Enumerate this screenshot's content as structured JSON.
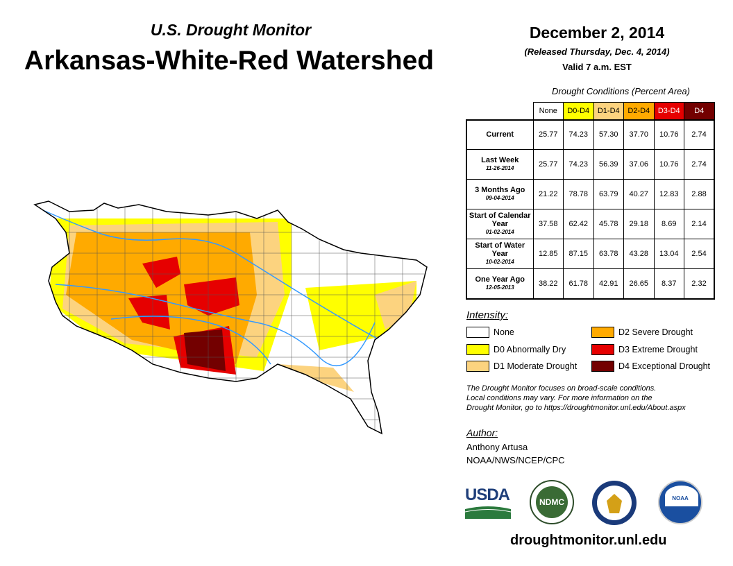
{
  "header": {
    "subtitle": "U.S. Drought Monitor",
    "title": "Arkansas-White-Red Watershed",
    "date": "December 2, 2014",
    "released": "(Released Thursday, Dec. 4, 2014)",
    "valid": "Valid 7 a.m. EST"
  },
  "table": {
    "caption": "Drought Conditions (Percent Area)",
    "columns": [
      {
        "label": "None",
        "bg": "#ffffff",
        "fg": "#000000"
      },
      {
        "label": "D0-D4",
        "bg": "#ffff00",
        "fg": "#000000"
      },
      {
        "label": "D1-D4",
        "bg": "#fcd37f",
        "fg": "#000000"
      },
      {
        "label": "D2-D4",
        "bg": "#ffaa00",
        "fg": "#000000"
      },
      {
        "label": "D3-D4",
        "bg": "#e60000",
        "fg": "#ffffff"
      },
      {
        "label": "D4",
        "bg": "#730000",
        "fg": "#ffffff"
      }
    ],
    "rows": [
      {
        "label": "Current",
        "date": "",
        "values": [
          "25.77",
          "74.23",
          "57.30",
          "37.70",
          "10.76",
          "2.74"
        ]
      },
      {
        "label": "Last Week",
        "date": "11-26-2014",
        "values": [
          "25.77",
          "74.23",
          "56.39",
          "37.06",
          "10.76",
          "2.74"
        ]
      },
      {
        "label": "3 Months Ago",
        "date": "09-04-2014",
        "values": [
          "21.22",
          "78.78",
          "63.79",
          "40.27",
          "12.83",
          "2.88"
        ]
      },
      {
        "label": "Start of Calendar Year",
        "date": "01-02-2014",
        "values": [
          "37.58",
          "62.42",
          "45.78",
          "29.18",
          "8.69",
          "2.14"
        ]
      },
      {
        "label": "Start of Water Year",
        "date": "10-02-2014",
        "values": [
          "12.85",
          "87.15",
          "63.78",
          "43.28",
          "13.04",
          "2.54"
        ]
      },
      {
        "label": "One Year Ago",
        "date": "12-05-2013",
        "values": [
          "38.22",
          "61.78",
          "42.91",
          "26.65",
          "8.37",
          "2.32"
        ]
      }
    ]
  },
  "legend": {
    "title": "Intensity:",
    "items": [
      {
        "label": "None",
        "color": "#ffffff"
      },
      {
        "label": "D0 Abnormally Dry",
        "color": "#ffff00"
      },
      {
        "label": "D1 Moderate Drought",
        "color": "#fcd37f"
      },
      {
        "label": "D2 Severe Drought",
        "color": "#ffaa00"
      },
      {
        "label": "D3 Extreme Drought",
        "color": "#e60000"
      },
      {
        "label": "D4 Exceptional Drought",
        "color": "#730000"
      }
    ]
  },
  "note": [
    "The Drought Monitor focuses on broad-scale conditions.",
    "Local conditions may vary. For more information on the",
    "Drought Monitor, go to https://droughtmonitor.unl.edu/About.aspx"
  ],
  "author": {
    "heading": "Author:",
    "name": "Anthony Artusa",
    "org": "NOAA/NWS/NCEP/CPC"
  },
  "logos": {
    "usda": "USDA",
    "ndmc": "NDMC",
    "noaa": "NOAA"
  },
  "footer": {
    "url": "droughtmonitor.unl.edu"
  }
}
